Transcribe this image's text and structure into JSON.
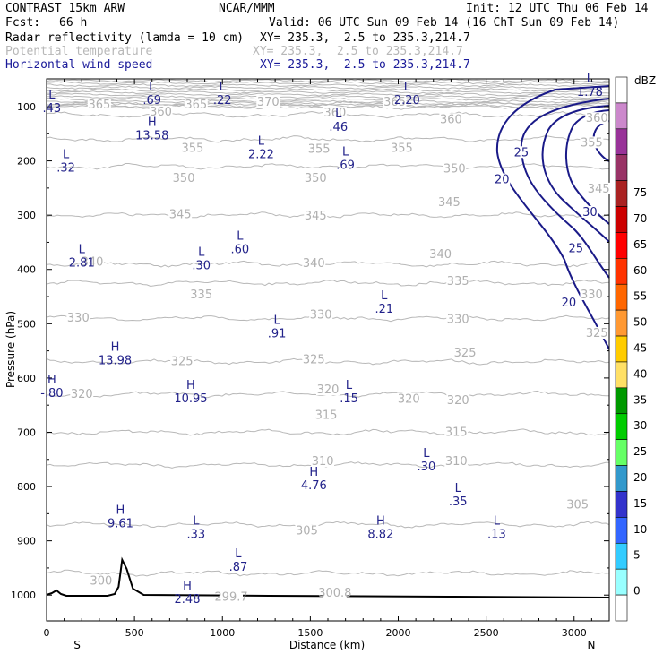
{
  "header": {
    "model": "CONTRAST 15km ARW",
    "center": "NCAR/MMM",
    "init": "Init: 12 UTC Thu 06 Feb 14",
    "fcst_label": "Fcst:",
    "fcst_value": "66 h",
    "valid": "Valid: 06 UTC Sun 09 Feb 14 (16 ChT Sun 09 Feb 14)",
    "fields": [
      {
        "name": "Radar reflectivity (lamda = 10 cm)",
        "xy": "XY= 235.3,  2.5 to 235.3,214.7",
        "color": "#000000"
      },
      {
        "name": "Potential temperature",
        "xy": "XY= 235.3,  2.5 to 235.3,214.7",
        "color": "#b8b8b8"
      },
      {
        "name": "Horizontal wind speed",
        "xy": "XY= 235.3,  2.5 to 235.3,214.7",
        "color": "#1a1a99"
      }
    ]
  },
  "chart_data": {
    "type": "contour",
    "xlabel": "Distance (km)",
    "ylabel": "Pressure (hPa)",
    "xlim": [
      0,
      3200
    ],
    "ylim": [
      1050,
      50
    ],
    "x_ticks": [
      "0",
      "500",
      "1000",
      "1500",
      "2000",
      "2500",
      "3000"
    ],
    "y_ticks": [
      "100",
      "200",
      "300",
      "400",
      "500",
      "600",
      "700",
      "800",
      "900",
      "1000"
    ],
    "x_end_labels": {
      "left": "S",
      "right": "N"
    },
    "theta_contours": [
      {
        "label": "370",
        "p": 95
      },
      {
        "label": "365",
        "p": 100
      },
      {
        "label": "360",
        "p": 115
      },
      {
        "label": "355",
        "p": 160
      },
      {
        "label": "350",
        "p": 210
      },
      {
        "label": "345",
        "p": 300
      },
      {
        "label": "340",
        "p": 390
      },
      {
        "label": "335",
        "p": 425
      },
      {
        "label": "330",
        "p": 490
      },
      {
        "label": "325",
        "p": 570
      },
      {
        "label": "320",
        "p": 630
      },
      {
        "label": "315",
        "p": 700
      },
      {
        "label": "310",
        "p": 760
      },
      {
        "label": "305",
        "p": 870
      },
      {
        "label": "300",
        "p": 960
      }
    ],
    "theta_labels": [
      {
        "text": "365",
        "x": 300,
        "p": 100
      },
      {
        "text": "365",
        "x": 850,
        "p": 100
      },
      {
        "text": "370",
        "x": 1260,
        "p": 95
      },
      {
        "text": "365",
        "x": 1980,
        "p": 95
      },
      {
        "text": "360",
        "x": 650,
        "p": 113
      },
      {
        "text": "360",
        "x": 1640,
        "p": 115
      },
      {
        "text": "360",
        "x": 2300,
        "p": 127
      },
      {
        "text": "360",
        "x": 3130,
        "p": 125
      },
      {
        "text": "355",
        "x": 830,
        "p": 180
      },
      {
        "text": "355",
        "x": 1550,
        "p": 182
      },
      {
        "text": "355",
        "x": 2020,
        "p": 180
      },
      {
        "text": "355",
        "x": 3100,
        "p": 170
      },
      {
        "text": "350",
        "x": 780,
        "p": 235
      },
      {
        "text": "350",
        "x": 1530,
        "p": 235
      },
      {
        "text": "350",
        "x": 2320,
        "p": 218
      },
      {
        "text": "345",
        "x": 760,
        "p": 302
      },
      {
        "text": "345",
        "x": 1530,
        "p": 305
      },
      {
        "text": "345",
        "x": 2290,
        "p": 280
      },
      {
        "text": "345",
        "x": 3140,
        "p": 255
      },
      {
        "text": "340",
        "x": 260,
        "p": 390
      },
      {
        "text": "340",
        "x": 1520,
        "p": 392
      },
      {
        "text": "340",
        "x": 2240,
        "p": 376
      },
      {
        "text": "335",
        "x": 880,
        "p": 450
      },
      {
        "text": "335",
        "x": 2340,
        "p": 425
      },
      {
        "text": "330",
        "x": 180,
        "p": 493
      },
      {
        "text": "330",
        "x": 1560,
        "p": 487
      },
      {
        "text": "330",
        "x": 2340,
        "p": 495
      },
      {
        "text": "330",
        "x": 3100,
        "p": 450
      },
      {
        "text": "325",
        "x": 770,
        "p": 573
      },
      {
        "text": "325",
        "x": 1520,
        "p": 570
      },
      {
        "text": "325",
        "x": 2380,
        "p": 557
      },
      {
        "text": "325",
        "x": 3130,
        "p": 521
      },
      {
        "text": "320",
        "x": 200,
        "p": 633
      },
      {
        "text": "320",
        "x": 1600,
        "p": 625
      },
      {
        "text": "320",
        "x": 2060,
        "p": 642
      },
      {
        "text": "320",
        "x": 2340,
        "p": 645
      },
      {
        "text": "315",
        "x": 1590,
        "p": 672
      },
      {
        "text": "315",
        "x": 2330,
        "p": 703
      },
      {
        "text": "310",
        "x": 1570,
        "p": 757
      },
      {
        "text": "310",
        "x": 2330,
        "p": 757
      },
      {
        "text": "305",
        "x": 1480,
        "p": 885
      },
      {
        "text": "305",
        "x": 3020,
        "p": 837
      },
      {
        "text": "300",
        "x": 310,
        "p": 977
      },
      {
        "text": "299.7",
        "x": 1050,
        "p": 1007
      },
      {
        "text": "300.8",
        "x": 1640,
        "p": 1000
      }
    ],
    "wind_speed_contours": [
      "20",
      "25",
      "30"
    ],
    "wind_labels": [
      {
        "text": "20",
        "x": 2590,
        "p": 238
      },
      {
        "text": "25",
        "x": 2700,
        "p": 188
      },
      {
        "text": "30",
        "x": 3090,
        "p": 298
      },
      {
        "text": "25",
        "x": 3010,
        "p": 365
      },
      {
        "text": "20",
        "x": 2970,
        "p": 465
      }
    ],
    "extrema": [
      {
        "type": "L",
        "value": ".43",
        "x": 30,
        "p": 95
      },
      {
        "type": "L",
        "value": ".69",
        "x": 600,
        "p": 80
      },
      {
        "type": "L",
        "value": ".22",
        "x": 1000,
        "p": 80
      },
      {
        "type": "L",
        "value": "2.20",
        "x": 2050,
        "p": 80
      },
      {
        "type": "L",
        "value": "1.78",
        "x": 3090,
        "p": 65
      },
      {
        "type": "H",
        "value": "13.58",
        "x": 600,
        "p": 145
      },
      {
        "type": "L",
        "value": ".46",
        "x": 1660,
        "p": 130
      },
      {
        "type": "L",
        "value": "2.22",
        "x": 1220,
        "p": 180
      },
      {
        "type": "L",
        "value": ".69",
        "x": 1700,
        "p": 200
      },
      {
        "type": "L",
        "value": ".32",
        "x": 110,
        "p": 205
      },
      {
        "type": "L",
        "value": "2.81",
        "x": 200,
        "p": 380
      },
      {
        "type": "L",
        "value": ".30",
        "x": 880,
        "p": 385
      },
      {
        "type": "L",
        "value": ".60",
        "x": 1100,
        "p": 355
      },
      {
        "type": "L",
        "value": ".21",
        "x": 1920,
        "p": 465
      },
      {
        "type": "L",
        "value": ".91",
        "x": 1310,
        "p": 510
      },
      {
        "type": "H",
        "value": "13.98",
        "x": 390,
        "p": 560
      },
      {
        "type": "H",
        "value": "-.80",
        "x": 30,
        "p": 620
      },
      {
        "type": "H",
        "value": "10.95",
        "x": 820,
        "p": 630
      },
      {
        "type": "L",
        "value": ".15",
        "x": 1720,
        "p": 630
      },
      {
        "type": "L",
        "value": ".30",
        "x": 2160,
        "p": 755
      },
      {
        "type": "H",
        "value": "4.76",
        "x": 1520,
        "p": 790
      },
      {
        "type": "L",
        "value": ".35",
        "x": 2340,
        "p": 820
      },
      {
        "type": "H",
        "value": "9.61",
        "x": 420,
        "p": 860
      },
      {
        "type": "L",
        "value": ".33",
        "x": 850,
        "p": 880
      },
      {
        "type": "H",
        "value": "8.82",
        "x": 1900,
        "p": 880
      },
      {
        "type": "L",
        "value": ".13",
        "x": 2560,
        "p": 880
      },
      {
        "type": "L",
        "value": ".87",
        "x": 1090,
        "p": 940
      },
      {
        "type": "H",
        "value": "2.48",
        "x": 800,
        "p": 1000
      }
    ],
    "terrain_peak": {
      "x": 440,
      "p": 935
    },
    "colorbar": {
      "unit": "dBZ",
      "levels": [
        "0",
        "5",
        "10",
        "15",
        "20",
        "25",
        "30",
        "35",
        "40",
        "45",
        "50",
        "55",
        "60",
        "65",
        "70",
        "75"
      ],
      "colors": [
        "#ffffff",
        "#99ffff",
        "#33ccff",
        "#3366ff",
        "#3333cc",
        "#3399cc",
        "#66ff66",
        "#00cc00",
        "#009900",
        "#ffe066",
        "#ffcc00",
        "#ff9933",
        "#ff6600",
        "#ff3300",
        "#ff0000",
        "#cc0000",
        "#aa2222",
        "#993366",
        "#993399",
        "#cc88cc",
        "#ffffff"
      ]
    }
  }
}
